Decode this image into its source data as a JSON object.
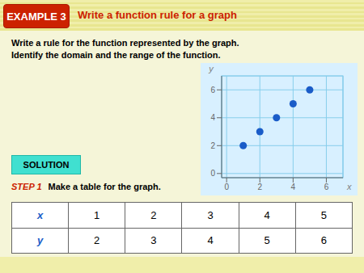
{
  "chart_data": {
    "type": "scatter",
    "title": "Write a function rule for a graph",
    "annotations": [
      "EXAMPLE 3",
      "Write a rule for the function represented by the graph.",
      "Identify the domain and the range of the function.",
      "SOLUTION",
      "STEP 1",
      "Make a table for the graph."
    ],
    "x": [
      1,
      2,
      3,
      4,
      5
    ],
    "values": [
      2,
      3,
      4,
      5,
      6
    ],
    "xlabel": "x",
    "ylabel": "y",
    "xlim": [
      -0.3,
      7.0
    ],
    "ylim": [
      -0.3,
      7.0
    ],
    "xticks": [
      0,
      2,
      4,
      6
    ],
    "yticks": [
      0,
      2,
      4,
      6
    ],
    "grid": true,
    "color": "#1a5cc8"
  }
}
